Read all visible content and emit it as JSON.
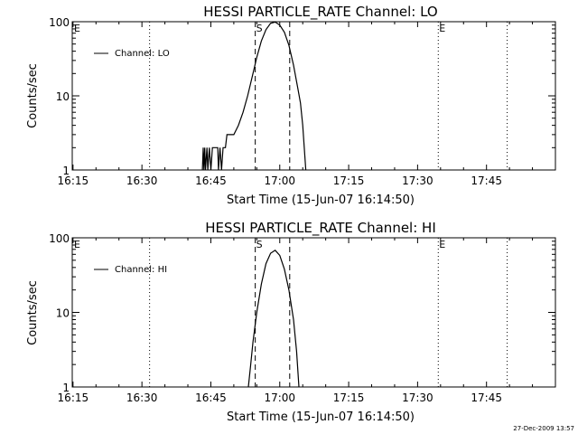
{
  "footer": {
    "timestamp": "27-Dec-2009 13:57"
  },
  "chart_data": [
    {
      "type": "line",
      "title": "HESSI PARTICLE_RATE Channel: LO",
      "xlabel": "Start Time (15-Jun-07 16:14:50)",
      "ylabel": "Counts/sec",
      "y_scale": "log",
      "ylim": [
        1,
        100
      ],
      "xlim": [
        "16:14:50",
        "18:00:00"
      ],
      "x_ticks": [
        "16:15",
        "16:30",
        "16:45",
        "17:00",
        "17:15",
        "17:30",
        "17:45"
      ],
      "y_ticks": [
        "1",
        "10",
        "100"
      ],
      "legend": {
        "position": "top-left",
        "entries": [
          "Channel: LO"
        ]
      },
      "vertical_lines": [
        {
          "time": "16:31:40",
          "style": "dotted",
          "label": ""
        },
        {
          "time": "16:54:40",
          "style": "dashed",
          "label": "S"
        },
        {
          "time": "17:02:10",
          "style": "dashed",
          "label": ""
        },
        {
          "time": "17:34:30",
          "style": "dotted",
          "label": "E"
        },
        {
          "time": "17:49:30",
          "style": "dotted",
          "label": ""
        }
      ],
      "corner_label": "E",
      "series": [
        {
          "name": "Channel: LO",
          "points": [
            [
              "16:43:10",
              1
            ],
            [
              "16:43:20",
              2
            ],
            [
              "16:43:30",
              1
            ],
            [
              "16:43:40",
              2
            ],
            [
              "16:43:50",
              1
            ],
            [
              "16:44:10",
              2
            ],
            [
              "16:44:20",
              1
            ],
            [
              "16:44:40",
              2
            ],
            [
              "16:45:00",
              1
            ],
            [
              "16:45:20",
              2
            ],
            [
              "16:46:30",
              2
            ],
            [
              "16:46:40",
              1
            ],
            [
              "16:47:00",
              2
            ],
            [
              "16:47:20",
              1
            ],
            [
              "16:47:40",
              2
            ],
            [
              "16:48:10",
              2
            ],
            [
              "16:48:30",
              3
            ],
            [
              "16:49:00",
              3
            ],
            [
              "16:50:00",
              3
            ],
            [
              "16:51:00",
              4
            ],
            [
              "16:52:00",
              6
            ],
            [
              "16:53:00",
              10
            ],
            [
              "16:54:00",
              18
            ],
            [
              "16:55:00",
              33
            ],
            [
              "16:56:00",
              55
            ],
            [
              "16:57:00",
              78
            ],
            [
              "16:58:00",
              95
            ],
            [
              "16:59:00",
              99
            ],
            [
              "17:00:00",
              90
            ],
            [
              "17:01:00",
              72
            ],
            [
              "17:02:00",
              48
            ],
            [
              "17:03:00",
              26
            ],
            [
              "17:04:00",
              12
            ],
            [
              "17:04:30",
              8
            ],
            [
              "17:05:00",
              4
            ],
            [
              "17:05:20",
              2
            ],
            [
              "17:05:40",
              1
            ]
          ]
        }
      ]
    },
    {
      "type": "line",
      "title": "HESSI PARTICLE_RATE Channel: HI",
      "xlabel": "Start Time (15-Jun-07 16:14:50)",
      "ylabel": "Counts/sec",
      "y_scale": "log",
      "ylim": [
        1,
        100
      ],
      "xlim": [
        "16:14:50",
        "18:00:00"
      ],
      "x_ticks": [
        "16:15",
        "16:30",
        "16:45",
        "17:00",
        "17:15",
        "17:30",
        "17:45"
      ],
      "y_ticks": [
        "1",
        "10",
        "100"
      ],
      "legend": {
        "position": "top-left",
        "entries": [
          "Channel: HI"
        ]
      },
      "vertical_lines": [
        {
          "time": "16:31:40",
          "style": "dotted",
          "label": ""
        },
        {
          "time": "16:54:40",
          "style": "dashed",
          "label": "S"
        },
        {
          "time": "17:02:10",
          "style": "dashed",
          "label": ""
        },
        {
          "time": "17:34:30",
          "style": "dotted",
          "label": "E"
        },
        {
          "time": "17:49:30",
          "style": "dotted",
          "label": ""
        }
      ],
      "corner_label": "E",
      "series": [
        {
          "name": "Channel: HI",
          "points": [
            [
              "16:53:10",
              1
            ],
            [
              "16:53:40",
              2
            ],
            [
              "16:54:10",
              4
            ],
            [
              "16:55:00",
              10
            ],
            [
              "16:56:00",
              24
            ],
            [
              "16:57:00",
              45
            ],
            [
              "16:58:00",
              62
            ],
            [
              "16:59:00",
              68
            ],
            [
              "17:00:00",
              58
            ],
            [
              "17:01:00",
              38
            ],
            [
              "17:02:00",
              20
            ],
            [
              "17:03:00",
              8
            ],
            [
              "17:03:40",
              3
            ],
            [
              "17:04:10",
              1
            ]
          ]
        }
      ]
    }
  ]
}
